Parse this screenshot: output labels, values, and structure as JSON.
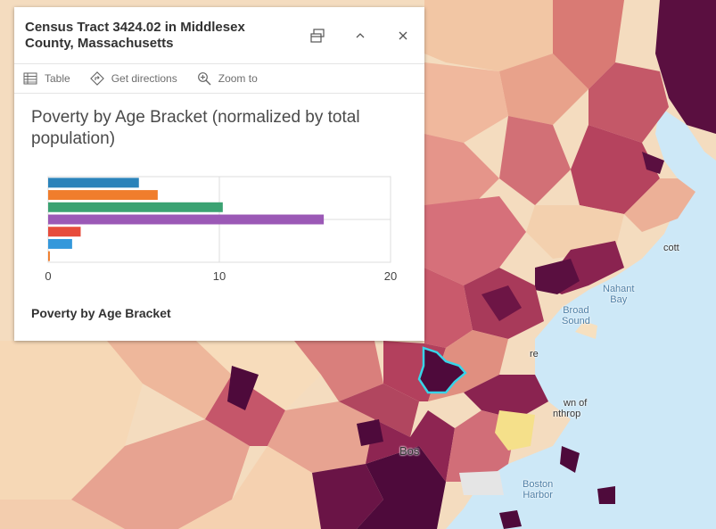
{
  "popup": {
    "title": "Census Tract 3424.02 in Middlesex County, Massachusetts",
    "actions": [
      {
        "label": "Table",
        "icon": "table-icon"
      },
      {
        "label": "Get directions",
        "icon": "directions-icon"
      },
      {
        "label": "Zoom to",
        "icon": "zoom-to-icon"
      }
    ],
    "header_icons": [
      "dock-icon",
      "collapse-chevron-icon",
      "close-icon"
    ],
    "chart_title": "Poverty by Age Bracket (normalized by total population)",
    "chart_caption": "Poverty by Age Bracket"
  },
  "map": {
    "labels": {
      "nahant_bay": "Nahant\nBay",
      "broad_sound": "Broad\nSound",
      "boston_harbor": "Boston\nHarbor",
      "cott": "cott",
      "re": "re",
      "own_of": "wn of",
      "nthrop": "nthrop",
      "bos": "Bos"
    },
    "colors": {
      "water": "#cde8f7",
      "light": "#f9e6c4",
      "mid": "#e49b82",
      "dark": "#a63b56",
      "darkest": "#4e0a3b",
      "highlight": "#38d4e8"
    }
  },
  "chart_data": {
    "type": "bar",
    "orientation": "horizontal",
    "categories": [
      "",
      "",
      "",
      "",
      "",
      "",
      ""
    ],
    "values": [
      5.3,
      6.4,
      10.2,
      16.1,
      1.9,
      1.4,
      0.1
    ],
    "colors": [
      "#2b83ba",
      "#f07d2c",
      "#3ba272",
      "#9b59b6",
      "#e74c3c",
      "#3498db",
      "#f07d2c"
    ],
    "xlim": [
      0,
      20
    ],
    "xticks": [
      0,
      10,
      20
    ],
    "grid": true
  }
}
